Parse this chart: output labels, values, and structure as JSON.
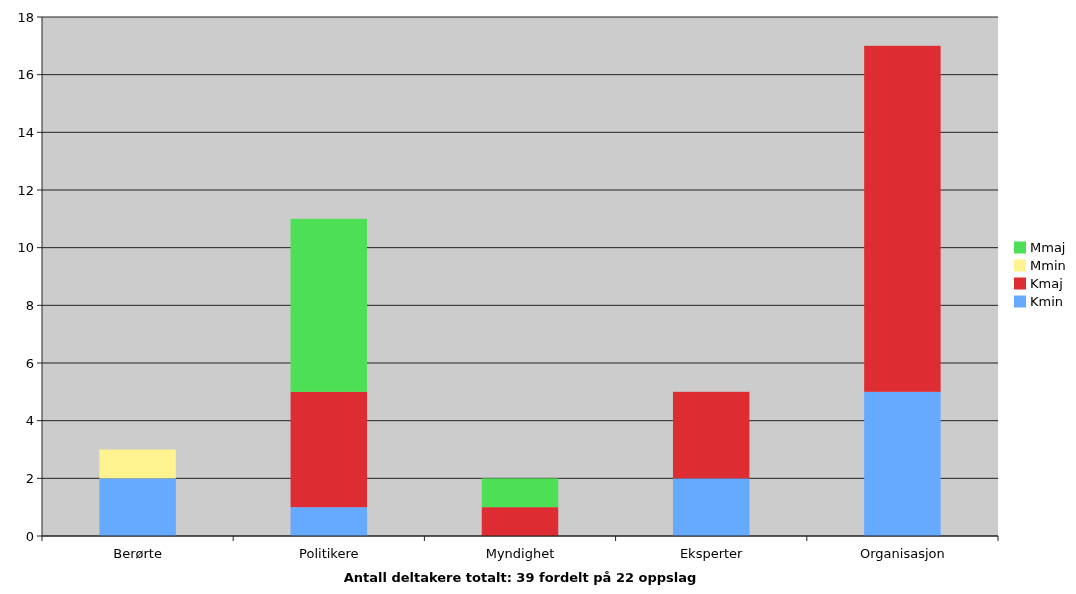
{
  "chart_data": {
    "type": "bar",
    "xlabel": "Antall deltakere totalt: 39 fordelt på 22 oppslag",
    "categories": [
      "Berørte",
      "Politikere",
      "Myndighet",
      "Eksperter",
      "Organisasjon"
    ],
    "stacked": true,
    "series": [
      {
        "name": "Kmin",
        "color": "#66aaff",
        "values": [
          2,
          1,
          0,
          2,
          5
        ]
      },
      {
        "name": "Kmaj",
        "color": "#dd2d32",
        "values": [
          0,
          4,
          1,
          3,
          12
        ]
      },
      {
        "name": "Mmin",
        "color": "#fff38f",
        "values": [
          1,
          0,
          0,
          0,
          0
        ]
      },
      {
        "name": "Mmaj",
        "color": "#4ddf55",
        "values": [
          0,
          6,
          1,
          0,
          0
        ]
      }
    ],
    "ylim": [
      0,
      18
    ],
    "yticks": [
      0,
      2,
      4,
      6,
      8,
      10,
      12,
      14,
      16,
      18
    ],
    "grid": "y",
    "legend": "right"
  }
}
